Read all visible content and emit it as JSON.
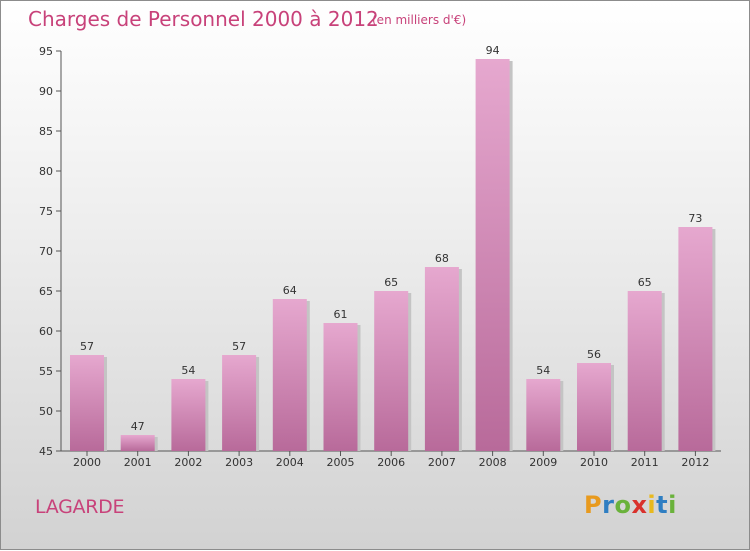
{
  "title": "Charges de Personnel 2000 à 2012",
  "subtitle": "(en milliers d'€)",
  "place": "LAGARDE",
  "logo": {
    "letters": [
      "P",
      "r",
      "o",
      "x",
      "i",
      "t",
      "i"
    ],
    "colors": [
      "#e89a1e",
      "#2f7ec2",
      "#6ab23b",
      "#d9312c",
      "#e8b91e",
      "#2f7ec2",
      "#6ab23b"
    ]
  },
  "colors": {
    "bar_top": "#e6a8cf",
    "bar_bottom": "#b86a9a",
    "accent": "#c8427a"
  },
  "chart_data": {
    "type": "bar",
    "categories": [
      "2000",
      "2001",
      "2002",
      "2003",
      "2004",
      "2005",
      "2006",
      "2007",
      "2008",
      "2009",
      "2010",
      "2011",
      "2012"
    ],
    "values": [
      57,
      47,
      54,
      57,
      64,
      61,
      65,
      68,
      94,
      54,
      56,
      65,
      73
    ],
    "ylim": [
      45,
      95
    ],
    "yticks": [
      45,
      50,
      55,
      60,
      65,
      70,
      75,
      80,
      85,
      90,
      95
    ],
    "grid": false,
    "data_labels": true
  }
}
